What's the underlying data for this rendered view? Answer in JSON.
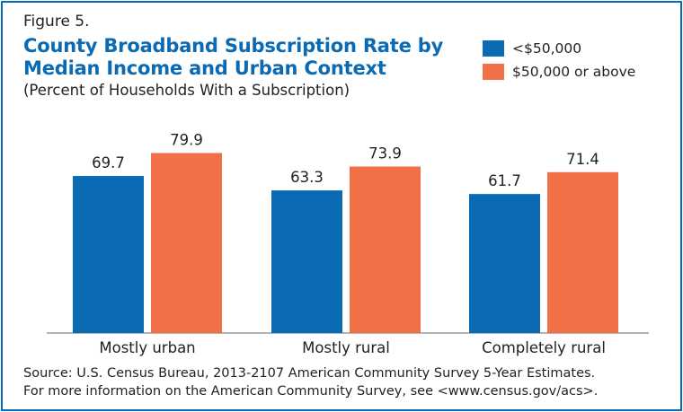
{
  "figure_label": "Figure 5.",
  "title_line1": "County Broadband Subscription Rate by",
  "title_line2": "Median Income and Urban Context",
  "subtitle": "(Percent of Households With a Subscription)",
  "source_line1": "Source: U.S. Census Bureau, 2013-2107 American Community Survey 5-Year Estimates.",
  "source_line2": "For more information on the American Community Survey, see <www.census.gov/acs>.",
  "colors": {
    "frame": "#0a6ab3",
    "title": "#0a6ab3",
    "low_income": "#0a6ab3",
    "high_income": "#f07148"
  },
  "chart_data": {
    "type": "bar",
    "title": "County Broadband Subscription Rate by Median Income and Urban Context",
    "subtitle": "(Percent of Households With a Subscription)",
    "categories": [
      "Mostly urban",
      "Mostly rural",
      "Completely rural"
    ],
    "series": [
      {
        "name": "<$50,000",
        "values": [
          69.7,
          63.3,
          61.7
        ],
        "color": "#0a6ab3"
      },
      {
        "name": "$50,000 or above",
        "values": [
          79.9,
          73.9,
          71.4
        ],
        "color": "#f07148"
      }
    ],
    "xlabel": "",
    "ylabel": "",
    "ylim": [
      0,
      100
    ],
    "grid": false,
    "legend_position": "top-right"
  }
}
